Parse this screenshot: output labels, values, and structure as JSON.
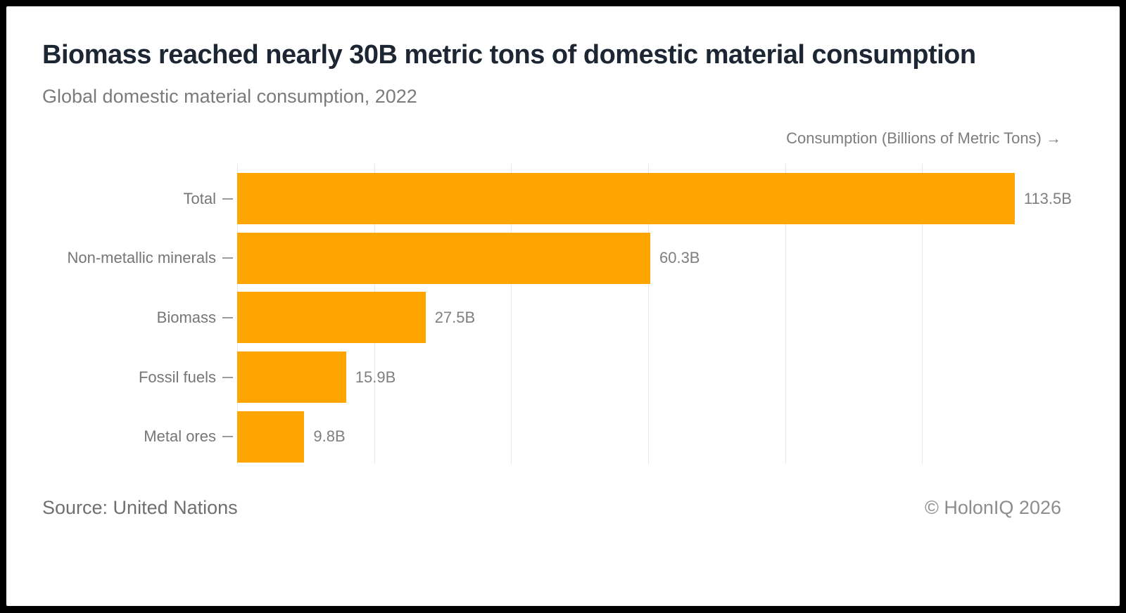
{
  "header": {
    "title": "Biomass reached nearly 30B metric tons of domestic material consumption",
    "subtitle": "Global domestic material consumption, 2022"
  },
  "chart_data": {
    "type": "bar",
    "orientation": "horizontal",
    "title": "Biomass reached nearly 30B metric tons of domestic material consumption",
    "subtitle": "Global domestic material consumption, 2022",
    "axis_title": "Consumption (Billions of Metric Tons) →",
    "categories": [
      "Total",
      "Non-metallic minerals",
      "Biomass",
      "Fossil fuels",
      "Metal ores"
    ],
    "values": [
      113.5,
      60.3,
      27.5,
      15.9,
      9.8
    ],
    "value_labels": [
      "113.5B",
      "60.3B",
      "27.5B",
      "15.9B",
      "9.8B"
    ],
    "xlim": [
      0,
      120.5
    ],
    "gridlines": [
      0,
      20,
      40,
      60,
      80,
      100
    ],
    "grid": true,
    "legend": "none",
    "bar_color": "#FFA502",
    "gridline_color": "#e6e6e6",
    "text_color": "#7b7b7b"
  },
  "footer": {
    "source": "Source: United Nations",
    "copyright": "© HolonIQ 2026"
  }
}
